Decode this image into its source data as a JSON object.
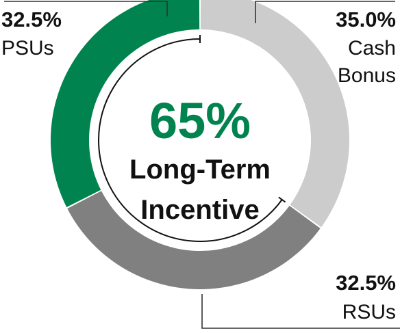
{
  "chart_data": {
    "type": "pie",
    "variant": "donut",
    "slices": [
      {
        "label_pct": "35.0%",
        "label_name": [
          "Cash",
          "Bonus"
        ],
        "value": 35.0,
        "color": "#cccccc"
      },
      {
        "label_pct": "32.5%",
        "label_name": [
          "RSUs"
        ],
        "value": 32.5,
        "color": "#808080"
      },
      {
        "label_pct": "32.5%",
        "label_name": [
          "PSUs"
        ],
        "value": 32.5,
        "color": "#00834f"
      }
    ],
    "center": {
      "value": "65%",
      "value_color": "#00834f",
      "lines": [
        "Long-Term",
        "Incentive"
      ]
    },
    "bracket": {
      "spans_slices": [
        "RSUs",
        "PSUs"
      ]
    }
  }
}
